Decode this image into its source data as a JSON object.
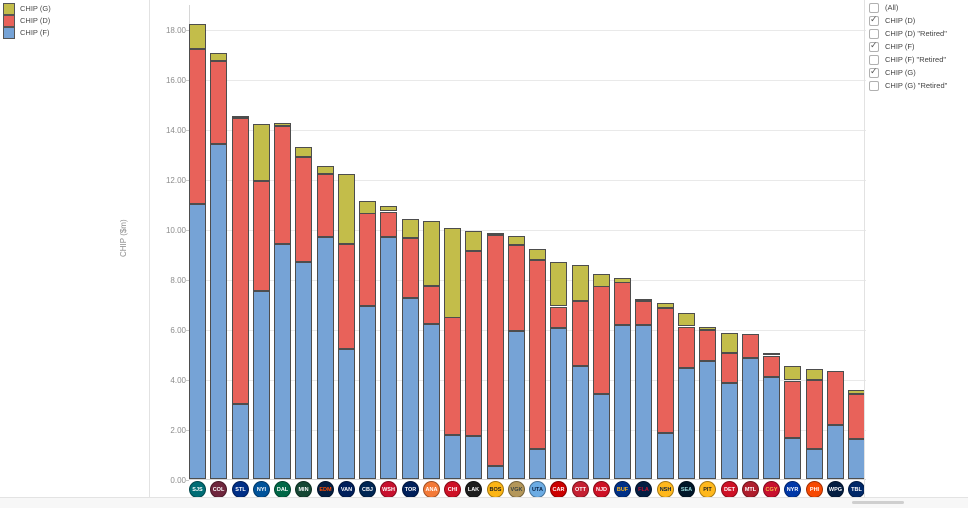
{
  "legend": {
    "items": [
      {
        "label": "CHIP (G)",
        "color": "#c3bd4a"
      },
      {
        "label": "CHIP (D)",
        "color": "#e8625a"
      },
      {
        "label": "CHIP (F)",
        "color": "#76a3d6"
      }
    ]
  },
  "y_axis": {
    "title": "CHIP ($m)",
    "tick_labels": [
      "0.00",
      "2.00",
      "4.00",
      "6.00",
      "8.00",
      "10.00",
      "12.00",
      "14.00",
      "16.00",
      "18.00"
    ],
    "tick_values": [
      0,
      2,
      4,
      6,
      8,
      10,
      12,
      14,
      16,
      18
    ]
  },
  "filter_panel": {
    "items": [
      {
        "label": "(All)",
        "checked": false
      },
      {
        "label": "CHIP (D)",
        "checked": true
      },
      {
        "label": "CHIP (D) \"Retired\"",
        "checked": false
      },
      {
        "label": "CHIP (F)",
        "checked": true
      },
      {
        "label": "CHIP (F) \"Retired\"",
        "checked": false
      },
      {
        "label": "CHIP (G)",
        "checked": true
      },
      {
        "label": "CHIP (G) \"Retired\"",
        "checked": false
      }
    ]
  },
  "teams": [
    {
      "abbr": "SJS",
      "logo_bg": "#006d75",
      "text": "#ffffff"
    },
    {
      "abbr": "COL",
      "logo_bg": "#6f263d",
      "text": "#ffffff"
    },
    {
      "abbr": "STL",
      "logo_bg": "#002f87",
      "text": "#ffffff"
    },
    {
      "abbr": "NYI",
      "logo_bg": "#00539b",
      "text": "#ffffff"
    },
    {
      "abbr": "DAL",
      "logo_bg": "#006847",
      "text": "#ffffff"
    },
    {
      "abbr": "MIN",
      "logo_bg": "#154734",
      "text": "#ffffff"
    },
    {
      "abbr": "EDM",
      "logo_bg": "#041e42",
      "text": "#ff4c00"
    },
    {
      "abbr": "VAN",
      "logo_bg": "#001f5b",
      "text": "#ffffff"
    },
    {
      "abbr": "CBJ",
      "logo_bg": "#002654",
      "text": "#ffffff"
    },
    {
      "abbr": "WSH",
      "logo_bg": "#c8102e",
      "text": "#ffffff"
    },
    {
      "abbr": "TOR",
      "logo_bg": "#00205b",
      "text": "#ffffff"
    },
    {
      "abbr": "ANA",
      "logo_bg": "#f47a38",
      "text": "#ffffff"
    },
    {
      "abbr": "CHI",
      "logo_bg": "#ce1126",
      "text": "#ffffff"
    },
    {
      "abbr": "LAK",
      "logo_bg": "#1d1d1d",
      "text": "#ffffff"
    },
    {
      "abbr": "BOS",
      "logo_bg": "#fcb514",
      "text": "#1d1d1d"
    },
    {
      "abbr": "VGK",
      "logo_bg": "#b4975a",
      "text": "#333f42"
    },
    {
      "abbr": "UTA",
      "logo_bg": "#6cace4",
      "text": "#041e42"
    },
    {
      "abbr": "CAR",
      "logo_bg": "#cc0000",
      "text": "#ffffff"
    },
    {
      "abbr": "OTT",
      "logo_bg": "#c52032",
      "text": "#ffffff"
    },
    {
      "abbr": "NJD",
      "logo_bg": "#ce1126",
      "text": "#ffffff"
    },
    {
      "abbr": "BUF",
      "logo_bg": "#003087",
      "text": "#ffb81c"
    },
    {
      "abbr": "FLA",
      "logo_bg": "#041e42",
      "text": "#c8102e"
    },
    {
      "abbr": "NSH",
      "logo_bg": "#ffb81c",
      "text": "#041e42"
    },
    {
      "abbr": "SEA",
      "logo_bg": "#001628",
      "text": "#99d9d9"
    },
    {
      "abbr": "PIT",
      "logo_bg": "#ffb81c",
      "text": "#1d1d1d"
    },
    {
      "abbr": "DET",
      "logo_bg": "#ce1126",
      "text": "#ffffff"
    },
    {
      "abbr": "MTL",
      "logo_bg": "#af1e2d",
      "text": "#ffffff"
    },
    {
      "abbr": "CGY",
      "logo_bg": "#c8102e",
      "text": "#f1be48"
    },
    {
      "abbr": "NYR",
      "logo_bg": "#0038a8",
      "text": "#ffffff"
    },
    {
      "abbr": "PHI",
      "logo_bg": "#f74902",
      "text": "#ffffff"
    },
    {
      "abbr": "WPG",
      "logo_bg": "#041e42",
      "text": "#ffffff"
    },
    {
      "abbr": "TBL",
      "logo_bg": "#002868",
      "text": "#ffffff"
    }
  ],
  "chart_data": {
    "type": "bar",
    "stacked": true,
    "orientation": "vertical",
    "title": "",
    "xlabel": "",
    "ylabel": "CHIP ($m)",
    "ylim": [
      0,
      19.2
    ],
    "ytick_step": 2,
    "grid": true,
    "legend_position": "top-left",
    "categories": [
      "SJS",
      "COL",
      "STL",
      "NYI",
      "DAL",
      "MIN",
      "EDM",
      "VAN",
      "CBJ",
      "WSH",
      "TOR",
      "ANA",
      "CHI",
      "LAK",
      "BOS",
      "VGK",
      "UTA",
      "CAR",
      "OTT",
      "NJD",
      "BUF",
      "FLA",
      "NSH",
      "SEA",
      "PIT",
      "DET",
      "MTL",
      "CGY",
      "NYR",
      "PHI",
      "WPG",
      "TBL"
    ],
    "series": [
      {
        "name": "CHIP (F)",
        "color": "#76a3d6",
        "values": [
          11.0,
          13.4,
          3.0,
          7.5,
          9.4,
          8.7,
          9.7,
          5.2,
          6.9,
          9.7,
          7.25,
          6.2,
          1.75,
          1.7,
          0.5,
          5.9,
          1.2,
          6.05,
          4.5,
          3.4,
          6.15,
          6.15,
          1.85,
          4.45,
          4.7,
          3.85,
          4.85,
          4.1,
          1.65,
          1.2,
          2.15,
          1.6
        ]
      },
      {
        "name": "CHIP (D)",
        "color": "#e8625a",
        "values": [
          6.2,
          3.3,
          11.45,
          4.4,
          4.7,
          4.2,
          2.5,
          4.2,
          3.7,
          1.0,
          2.4,
          1.5,
          4.7,
          7.4,
          9.25,
          3.45,
          7.55,
          0.85,
          2.6,
          4.3,
          1.7,
          0.95,
          5.0,
          1.65,
          1.25,
          1.2,
          0.95,
          0.85,
          2.3,
          2.75,
          2.15,
          1.8
        ]
      },
      {
        "name": "CHIP (G)",
        "color": "#c3bd4a",
        "values": [
          1.0,
          0.3,
          0.05,
          2.3,
          0.1,
          0.4,
          0.3,
          2.8,
          0.5,
          0.2,
          0.75,
          2.6,
          3.6,
          0.8,
          0.05,
          0.35,
          0.45,
          1.75,
          1.45,
          0.5,
          0.2,
          0.05,
          0.2,
          0.5,
          0.1,
          0.8,
          0.0,
          0.05,
          0.55,
          0.45,
          0.0,
          0.15
        ]
      }
    ],
    "totals": [
      18.2,
      17.0,
      14.5,
      14.2,
      14.2,
      13.3,
      12.5,
      12.2,
      11.1,
      10.9,
      10.4,
      10.3,
      10.05,
      9.9,
      9.8,
      9.7,
      9.2,
      8.65,
      8.55,
      8.2,
      8.05,
      7.15,
      7.05,
      6.6,
      6.05,
      5.85,
      5.8,
      5.0,
      4.5,
      4.4,
      4.3,
      3.55
    ]
  }
}
